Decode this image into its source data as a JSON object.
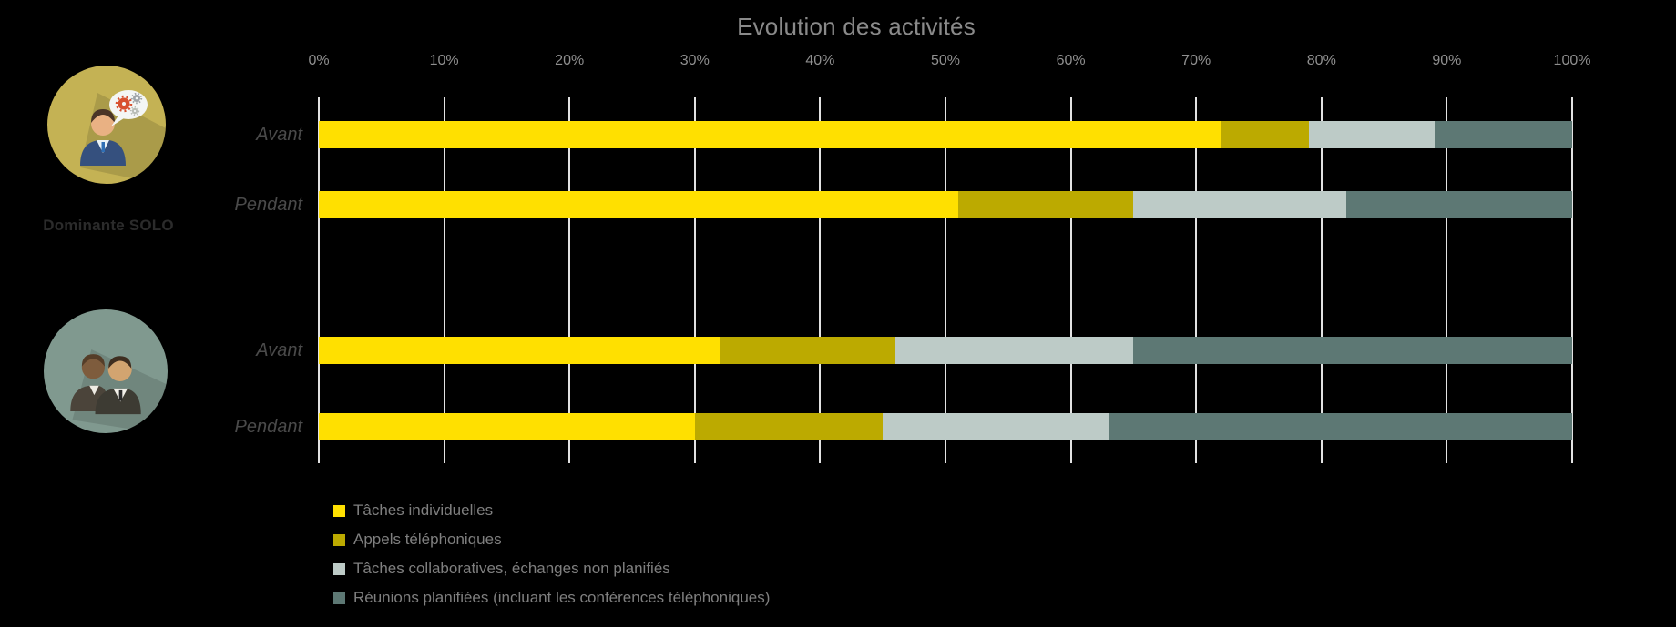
{
  "title": "Evolution des activités",
  "groups": [
    {
      "label": "Dominante SOLO",
      "icon": "solo-person-gears-icon"
    },
    {
      "label": "",
      "icon": "two-persons-icon"
    }
  ],
  "chart_data": {
    "type": "bar",
    "stacked": true,
    "orientation": "horizontal",
    "title": "Evolution des activités",
    "xlim": [
      0,
      100
    ],
    "x_ticks": [
      "0%",
      "10%",
      "20%",
      "30%",
      "40%",
      "50%",
      "60%",
      "70%",
      "80%",
      "90%",
      "100%"
    ],
    "grid": true,
    "legend_position": "bottom-left",
    "series_names": [
      "Tâches individuelles",
      "Appels téléphoniques",
      "Tâches collaboratives, échanges non planifiés",
      "Réunions planifiées (incluant les conférences téléphoniques)"
    ],
    "series_colors": [
      "#ffe000",
      "#bcaa00",
      "#bdcbc7",
      "#5d7874"
    ],
    "rows": [
      {
        "group": "Dominante SOLO",
        "label": "Avant",
        "values": [
          72,
          7,
          10,
          11
        ]
      },
      {
        "group": "Dominante SOLO",
        "label": "Pendant",
        "values": [
          51,
          14,
          17,
          18
        ]
      },
      {
        "group": "",
        "label": "Avant",
        "values": [
          32,
          14,
          19,
          35
        ]
      },
      {
        "group": "",
        "label": "Pendant",
        "values": [
          30,
          15,
          18,
          37
        ]
      }
    ]
  },
  "colors": {
    "background": "#000000",
    "gridline": "#e2e2e2",
    "title_text": "#8a8a8a",
    "tick_text": "#8f8f8f",
    "row_label_text": "#4a4a4a",
    "legend_text": "#7f7f7f",
    "group_label_text": "#2b2b2b",
    "icon_solo_circle": "#c4b254",
    "icon_duo_circle": "#80998f"
  }
}
